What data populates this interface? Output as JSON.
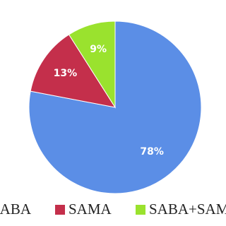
{
  "chart_data": {
    "type": "pie",
    "categories": [
      "SABA",
      "SAMA",
      "SABA+SAMA"
    ],
    "values": [
      78,
      13,
      9
    ],
    "value_labels": [
      "78%",
      "13%",
      "9%"
    ],
    "colors": [
      "#5b8ee6",
      "#c42f4b",
      "#9ae22e"
    ]
  }
}
